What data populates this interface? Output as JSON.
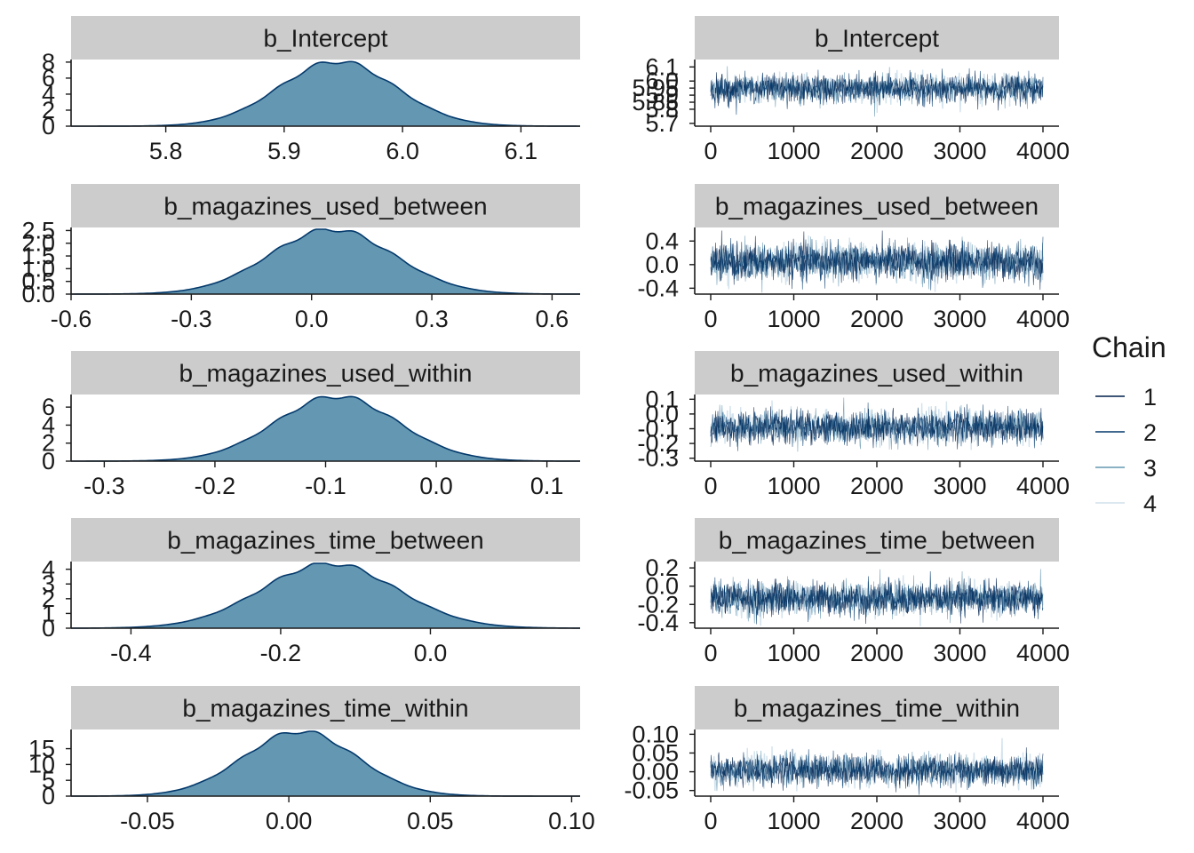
{
  "chart_data": [
    {
      "type": "area",
      "title": "b_Intercept",
      "xticks": [
        5.8,
        5.9,
        6.0,
        6.1
      ],
      "xtick_labels": [
        "5.8",
        "5.9",
        "6.0",
        "6.1"
      ],
      "yticks": [
        0,
        2,
        4,
        6,
        8
      ],
      "ytick_labels": [
        "0",
        "2",
        "4",
        "6",
        "8"
      ],
      "xlim": [
        5.72,
        6.15
      ],
      "ylim": [
        0,
        8.1
      ],
      "density": {
        "mean": 5.945,
        "sd": 0.049,
        "peak": 8.1
      }
    },
    {
      "type": "line",
      "title": "b_Intercept",
      "xticks": [
        0,
        1000,
        2000,
        3000,
        4000
      ],
      "xtick_labels": [
        "0",
        "1000",
        "2000",
        "3000",
        "4000"
      ],
      "yticks": [
        5.7,
        5.8,
        5.85,
        5.9,
        5.95,
        6.0,
        6.1
      ],
      "ytick_labels": [
        "5.7",
        "5.8",
        "5.85",
        "5.9",
        "5.95",
        "6.0",
        "6.1"
      ],
      "xlim": [
        0,
        4000
      ],
      "ylim": [
        5.68,
        6.14
      ],
      "trace": {
        "mean": 5.945,
        "sd": 0.049
      }
    },
    {
      "type": "area",
      "title": "b_magazines_used_between",
      "xticks": [
        -0.6,
        -0.3,
        0.0,
        0.3,
        0.6
      ],
      "xtick_labels": [
        "-0.6",
        "-0.3",
        "0.0",
        "0.3",
        "0.6"
      ],
      "yticks": [
        0,
        0.5,
        1.0,
        1.5,
        2.0,
        2.5
      ],
      "ytick_labels": [
        "0.0",
        "0.5",
        "1.0",
        "1.5",
        "2.0",
        "2.5"
      ],
      "xlim": [
        -0.6,
        0.67
      ],
      "ylim": [
        0,
        2.55
      ],
      "density": {
        "mean": 0.05,
        "sd": 0.155,
        "peak": 2.55
      }
    },
    {
      "type": "line",
      "title": "b_magazines_used_between",
      "xticks": [
        0,
        1000,
        2000,
        3000,
        4000
      ],
      "xtick_labels": [
        "0",
        "1000",
        "2000",
        "3000",
        "4000"
      ],
      "yticks": [
        -0.4,
        0.0,
        0.4
      ],
      "ytick_labels": [
        "-0.4",
        "0.0",
        "0.4"
      ],
      "xlim": [
        0,
        4000
      ],
      "ylim": [
        -0.5,
        0.6
      ],
      "trace": {
        "mean": 0.05,
        "sd": 0.155
      }
    },
    {
      "type": "area",
      "title": "b_magazines_used_within",
      "xticks": [
        -0.3,
        -0.2,
        -0.1,
        0.0,
        0.1
      ],
      "xtick_labels": [
        "-0.3",
        "-0.2",
        "-0.1",
        "0.0",
        "0.1"
      ],
      "yticks": [
        0,
        2,
        4,
        6
      ],
      "ytick_labels": [
        "0",
        "2",
        "4",
        "6"
      ],
      "xlim": [
        -0.33,
        0.13
      ],
      "ylim": [
        0,
        7.2
      ],
      "density": {
        "mean": -0.09,
        "sd": 0.055,
        "peak": 7.2
      }
    },
    {
      "type": "line",
      "title": "b_magazines_used_within",
      "xticks": [
        0,
        1000,
        2000,
        3000,
        4000
      ],
      "xtick_labels": [
        "0",
        "1000",
        "2000",
        "3000",
        "4000"
      ],
      "yticks": [
        -0.3,
        -0.2,
        -0.1,
        0.0,
        0.1
      ],
      "ytick_labels": [
        "-0.3",
        "-0.2",
        "-0.1",
        "0.0",
        "0.1"
      ],
      "xlim": [
        0,
        4000
      ],
      "ylim": [
        -0.32,
        0.12
      ],
      "trace": {
        "mean": -0.09,
        "sd": 0.055
      }
    },
    {
      "type": "area",
      "title": "b_magazines_time_between",
      "xticks": [
        -0.4,
        -0.2,
        0.0
      ],
      "xtick_labels": [
        "-0.4",
        "-0.2",
        "0.0"
      ],
      "yticks": [
        0,
        1,
        2,
        3,
        4
      ],
      "ytick_labels": [
        "0",
        "1",
        "2",
        "3",
        "4"
      ],
      "xlim": [
        -0.48,
        0.2
      ],
      "ylim": [
        0,
        4.4
      ],
      "density": {
        "mean": -0.135,
        "sd": 0.09,
        "peak": 4.4
      }
    },
    {
      "type": "line",
      "title": "b_magazines_time_between",
      "xticks": [
        0,
        1000,
        2000,
        3000,
        4000
      ],
      "xtick_labels": [
        "0",
        "1000",
        "2000",
        "3000",
        "4000"
      ],
      "yticks": [
        -0.4,
        -0.2,
        0.0,
        0.2
      ],
      "ytick_labels": [
        "-0.4",
        "-0.2",
        "0.0",
        "0.2"
      ],
      "xlim": [
        0,
        4000
      ],
      "ylim": [
        -0.46,
        0.25
      ],
      "trace": {
        "mean": -0.135,
        "sd": 0.09
      }
    },
    {
      "type": "area",
      "title": "b_magazines_time_within",
      "xticks": [
        -0.05,
        0.0,
        0.05,
        0.1
      ],
      "xtick_labels": [
        "-0.05",
        "0.00",
        "0.05",
        "0.10"
      ],
      "yticks": [
        0,
        5,
        10,
        15
      ],
      "ytick_labels": [
        "0",
        "5",
        "10",
        "15"
      ],
      "xlim": [
        -0.077,
        0.103
      ],
      "ylim": [
        0,
        20.5
      ],
      "density": {
        "mean": 0.004,
        "sd": 0.02,
        "peak": 20.5
      }
    },
    {
      "type": "line",
      "title": "b_magazines_time_within",
      "xticks": [
        0,
        1000,
        2000,
        3000,
        4000
      ],
      "xtick_labels": [
        "0",
        "1000",
        "2000",
        "3000",
        "4000"
      ],
      "yticks": [
        -0.05,
        0.0,
        0.05,
        0.1
      ],
      "ytick_labels": [
        "-0.05",
        "0.00",
        "0.05",
        "0.10"
      ],
      "xlim": [
        0,
        4000
      ],
      "ylim": [
        -0.065,
        0.108
      ],
      "trace": {
        "mean": 0.004,
        "sd": 0.02
      }
    }
  ],
  "legend": {
    "title": "Chain",
    "entries": [
      {
        "label": "1",
        "color": "#011f4b"
      },
      {
        "label": "2",
        "color": "#03396c"
      },
      {
        "label": "3",
        "color": "#6497b1"
      },
      {
        "label": "4",
        "color": "#d1e1ec"
      }
    ]
  },
  "colors": {
    "density_fill": "#6497b1",
    "density_line": "#03396c",
    "strip_bg": "#cccccc",
    "axis": "#1a1a1a"
  }
}
